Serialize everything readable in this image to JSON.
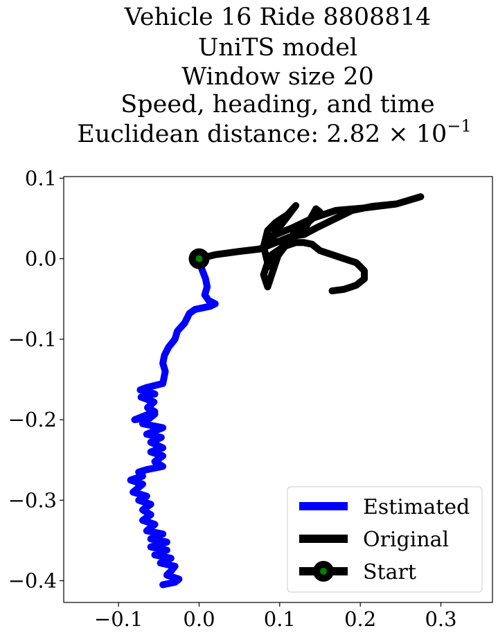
{
  "chart_data": {
    "type": "line",
    "title_lines": [
      "Vehicle 16 Ride 8808814",
      "UniTS model",
      "Window size 20",
      "Speed, heading, and time"
    ],
    "title_distance_prefix": "Euclidean distance: 2.82 × 10",
    "title_distance_exponent": "−1",
    "xlim": [
      -0.168,
      0.364
    ],
    "ylim": [
      -0.427,
      0.102
    ],
    "x_ticks": [
      -0.1,
      0.0,
      0.1,
      0.2,
      0.3
    ],
    "x_tick_labels": [
      "−0.1",
      "0.0",
      "0.1",
      "0.2",
      "0.3"
    ],
    "y_ticks": [
      0.1,
      0.0,
      -0.1,
      -0.2,
      -0.3,
      -0.4
    ],
    "y_tick_labels": [
      "0.1",
      "0.0",
      "−0.1",
      "−0.2",
      "−0.3",
      "−0.4"
    ],
    "grid": false,
    "legend_position": "bottom-right",
    "series": [
      {
        "name": "Estimated",
        "color": "#0000ff",
        "points": [
          [
            0.0,
            0.0
          ],
          [
            0.003,
            -0.012
          ],
          [
            0.008,
            -0.025
          ],
          [
            0.01,
            -0.035
          ],
          [
            0.007,
            -0.045
          ],
          [
            0.012,
            -0.052
          ],
          [
            0.02,
            -0.056
          ],
          [
            0.014,
            -0.059
          ],
          [
            -0.005,
            -0.063
          ],
          [
            -0.012,
            -0.068
          ],
          [
            -0.018,
            -0.08
          ],
          [
            -0.027,
            -0.09
          ],
          [
            -0.03,
            -0.1
          ],
          [
            -0.038,
            -0.11
          ],
          [
            -0.043,
            -0.12
          ],
          [
            -0.045,
            -0.13
          ],
          [
            -0.042,
            -0.14
          ],
          [
            -0.045,
            -0.155
          ],
          [
            -0.065,
            -0.16
          ],
          [
            -0.073,
            -0.163
          ],
          [
            -0.055,
            -0.168
          ],
          [
            -0.072,
            -0.172
          ],
          [
            -0.056,
            -0.178
          ],
          [
            -0.064,
            -0.185
          ],
          [
            -0.055,
            -0.19
          ],
          [
            -0.08,
            -0.2
          ],
          [
            -0.065,
            -0.198
          ],
          [
            -0.055,
            -0.193
          ],
          [
            -0.07,
            -0.205
          ],
          [
            -0.045,
            -0.21
          ],
          [
            -0.065,
            -0.218
          ],
          [
            -0.047,
            -0.222
          ],
          [
            -0.06,
            -0.228
          ],
          [
            -0.045,
            -0.235
          ],
          [
            -0.06,
            -0.24
          ],
          [
            -0.045,
            -0.245
          ],
          [
            -0.055,
            -0.252
          ],
          [
            -0.045,
            -0.258
          ],
          [
            -0.065,
            -0.262
          ],
          [
            -0.075,
            -0.265
          ],
          [
            -0.07,
            -0.27
          ],
          [
            -0.085,
            -0.275
          ],
          [
            -0.07,
            -0.28
          ],
          [
            -0.082,
            -0.29
          ],
          [
            -0.065,
            -0.295
          ],
          [
            -0.075,
            -0.3
          ],
          [
            -0.06,
            -0.305
          ],
          [
            -0.07,
            -0.312
          ],
          [
            -0.06,
            -0.318
          ],
          [
            -0.07,
            -0.325
          ],
          [
            -0.055,
            -0.33
          ],
          [
            -0.065,
            -0.338
          ],
          [
            -0.045,
            -0.342
          ],
          [
            -0.06,
            -0.348
          ],
          [
            -0.04,
            -0.352
          ],
          [
            -0.06,
            -0.358
          ],
          [
            -0.04,
            -0.362
          ],
          [
            -0.055,
            -0.368
          ],
          [
            -0.035,
            -0.372
          ],
          [
            -0.048,
            -0.378
          ],
          [
            -0.03,
            -0.382
          ],
          [
            -0.035,
            -0.388
          ],
          [
            -0.04,
            -0.393
          ],
          [
            -0.025,
            -0.398
          ],
          [
            -0.03,
            -0.402
          ],
          [
            -0.045,
            -0.405
          ]
        ]
      },
      {
        "name": "Original",
        "color": "#000000",
        "points": [
          [
            0.0,
            0.0
          ],
          [
            0.02,
            0.005
          ],
          [
            0.05,
            0.009
          ],
          [
            0.075,
            0.012
          ],
          [
            0.09,
            0.018
          ],
          [
            0.115,
            0.028
          ],
          [
            0.13,
            0.03
          ],
          [
            0.145,
            0.038
          ],
          [
            0.19,
            0.06
          ],
          [
            0.215,
            0.065
          ],
          [
            0.245,
            0.068
          ],
          [
            0.275,
            0.077
          ],
          [
            0.245,
            0.068
          ],
          [
            0.205,
            0.063
          ],
          [
            0.17,
            0.06
          ],
          [
            0.14,
            0.05
          ],
          [
            0.115,
            0.038
          ],
          [
            0.095,
            0.03
          ],
          [
            0.085,
            0.02
          ],
          [
            0.12,
            0.066
          ],
          [
            0.11,
            0.055
          ],
          [
            0.095,
            0.045
          ],
          [
            0.085,
            0.035
          ],
          [
            0.08,
            0.015
          ],
          [
            0.085,
            -0.005
          ],
          [
            0.08,
            -0.02
          ],
          [
            0.085,
            -0.035
          ],
          [
            0.09,
            -0.02
          ],
          [
            0.095,
            -0.005
          ],
          [
            0.1,
            0.01
          ],
          [
            0.11,
            0.025
          ],
          [
            0.13,
            0.035
          ],
          [
            0.145,
            0.062
          ],
          [
            0.15,
            0.058
          ],
          [
            0.135,
            0.045
          ],
          [
            0.12,
            0.035
          ],
          [
            0.11,
            0.02
          ],
          [
            0.095,
            0.0
          ],
          [
            0.085,
            -0.01
          ],
          [
            0.09,
            0.005
          ],
          [
            0.105,
            0.015
          ],
          [
            0.12,
            0.02
          ],
          [
            0.13,
            0.02
          ],
          [
            0.14,
            0.018
          ],
          [
            0.15,
            0.01
          ],
          [
            0.165,
            0.005
          ],
          [
            0.18,
            0.0
          ],
          [
            0.195,
            -0.005
          ],
          [
            0.205,
            -0.015
          ],
          [
            0.205,
            -0.025
          ],
          [
            0.195,
            -0.033
          ],
          [
            0.18,
            -0.038
          ],
          [
            0.165,
            -0.04
          ]
        ]
      }
    ],
    "start_marker": {
      "name": "Start",
      "x": 0.0,
      "y": 0.0,
      "edge_color": "#000000",
      "face_color": "#008000"
    },
    "legend": [
      "Estimated",
      "Original",
      "Start"
    ]
  }
}
